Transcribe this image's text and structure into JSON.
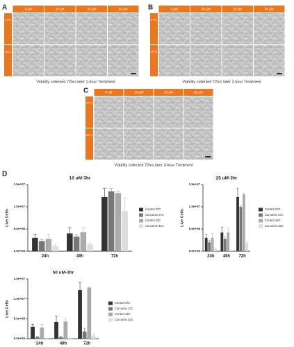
{
  "panels": [
    {
      "label": "A",
      "columns": [
        "0 µM",
        "10 µM",
        "25 µM",
        "50 µM"
      ],
      "rows": [
        "37°C",
        "42°C"
      ],
      "caption": "Viability collected 72hrs later 1-hour Treatment"
    },
    {
      "label": "B",
      "columns": [
        "0 µM",
        "50 µM",
        "25 µM",
        "50 µM"
      ],
      "rows": [
        "37°C",
        "42°C"
      ],
      "caption": "Viability collected 72hrs later 2-hour Treatment"
    },
    {
      "label": "C",
      "columns": [
        "0 µM",
        "10 µM",
        "25 µM",
        "50 µM"
      ],
      "rows": [
        "37°C",
        "42°C"
      ],
      "caption": "Viability collected 72hrs later 3-hour Treatment"
    }
  ],
  "panel_d_label": "D",
  "chart_data": [
    {
      "type": "bar",
      "title": "10 uM-3hr",
      "y_label": "Live Cells",
      "categories": [
        "24h",
        "48h",
        "72h"
      ],
      "ylim": [
        0,
        15000000
      ],
      "yticks": [
        {
          "value": 0,
          "label": "0.0e+00"
        },
        {
          "value": 5000000,
          "label": "5.0e+06"
        },
        {
          "value": 10000000,
          "label": "1.0e+07"
        },
        {
          "value": 15000000,
          "label": "1.5e+07"
        }
      ],
      "series": [
        {
          "name": "Control 37C",
          "color": "#333333",
          "values": [
            3000000,
            4000000,
            12200000
          ],
          "errors": [
            800000,
            1300000,
            2000000
          ]
        },
        {
          "name": "Curcumin 37C",
          "color": "#777777",
          "values": [
            2300000,
            3300000,
            13500000
          ],
          "errors": [
            400000,
            400000,
            600000
          ]
        },
        {
          "name": "Control 42C",
          "color": "#aaaaaa",
          "values": [
            2800000,
            4300000,
            13100000
          ],
          "errors": [
            1000000,
            1000000,
            400000
          ]
        },
        {
          "name": "Curcumin 42C",
          "color": "#dddddd",
          "values": [
            1200000,
            1500000,
            9000000
          ],
          "errors": [
            400000,
            200000,
            3000000
          ]
        }
      ]
    },
    {
      "type": "bar",
      "title": "25 uM-3hr",
      "y_label": "Live Cells",
      "categories": [
        "24h",
        "48h",
        "72h"
      ],
      "ylim": [
        0,
        15000000
      ],
      "yticks": [
        {
          "value": 0,
          "label": "0.0e+00"
        },
        {
          "value": 5000000,
          "label": "5.0e+06"
        },
        {
          "value": 10000000,
          "label": "1.0e+07"
        },
        {
          "value": 15000000,
          "label": "1.5e+07"
        }
      ],
      "series": [
        {
          "name": "Control 37C",
          "color": "#333333",
          "values": [
            3000000,
            4200000,
            12200000
          ],
          "errors": [
            800000,
            1200000,
            2000000
          ]
        },
        {
          "name": "Curcumin 37C",
          "color": "#777777",
          "values": [
            2000000,
            2800000,
            10000000
          ],
          "errors": [
            400000,
            400000,
            200000
          ]
        },
        {
          "name": "Control 42C",
          "color": "#aaaaaa",
          "values": [
            3000000,
            4200000,
            12800000
          ],
          "errors": [
            1000000,
            1000000,
            300000
          ]
        },
        {
          "name": "Curcumin 42C",
          "color": "#dddddd",
          "values": [
            600000,
            200000,
            1800000
          ],
          "errors": [
            300000,
            100000,
            300000
          ]
        }
      ]
    },
    {
      "type": "bar",
      "title": "50 uM-3hr",
      "y_label": "Live Cells",
      "categories": [
        "24h",
        "48h",
        "72h"
      ],
      "ylim": [
        0,
        15000000
      ],
      "yticks": [
        {
          "value": 0,
          "label": "0.0e+00"
        },
        {
          "value": 5000000,
          "label": "5.0e+06"
        },
        {
          "value": 10000000,
          "label": "1.0e+07"
        },
        {
          "value": 15000000,
          "label": "1.5e+07"
        }
      ],
      "series": [
        {
          "name": "Control 37C",
          "color": "#333333",
          "values": [
            3000000,
            4200000,
            12200000
          ],
          "errors": [
            600000,
            1500000,
            2000000
          ]
        },
        {
          "name": "Curcumin 37C",
          "color": "#777777",
          "values": [
            400000,
            400000,
            1800000
          ],
          "errors": [
            200000,
            200000,
            800000
          ]
        },
        {
          "name": "Control 42C",
          "color": "#aaaaaa",
          "values": [
            2800000,
            4300000,
            12800000
          ],
          "errors": [
            800000,
            800000,
            200000
          ]
        },
        {
          "name": "Curcumin 42C",
          "color": "#dddddd",
          "values": [
            100000,
            100000,
            800000
          ],
          "errors": [
            50000,
            50000,
            300000
          ]
        }
      ]
    }
  ]
}
